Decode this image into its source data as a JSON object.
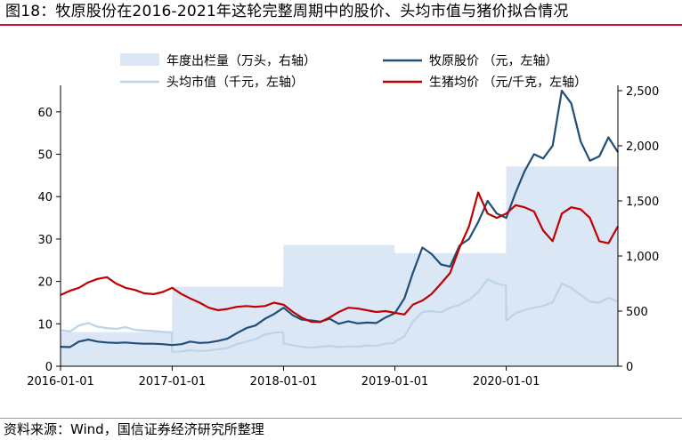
{
  "title": "图18：牧原股份在2016-2021年这轮完整周期中的股价、头均市值与猪价拟合情况",
  "source": "资料来源：Wind，国信证券经济研究所整理",
  "chart_data": {
    "type": "line",
    "x_range": [
      "2016-01-01",
      "2021-01-01"
    ],
    "x_ticks": [
      "2016-01-01",
      "2017-01-01",
      "2018-01-01",
      "2019-01-01",
      "2020-01-01"
    ],
    "x_tick_labels": [
      "2016-01-01",
      "2017-01-01",
      "2018-01-01",
      "2019-01-01",
      "2020-01-01"
    ],
    "y_left": {
      "range": [
        0,
        65
      ],
      "ticks": [
        0,
        10,
        20,
        30,
        40,
        50,
        60
      ],
      "tick_labels": [
        "0",
        "10",
        "20",
        "30",
        "40",
        "50",
        "60"
      ]
    },
    "y_right": {
      "range": [
        0,
        2500
      ],
      "ticks": [
        0,
        500,
        1000,
        1500,
        2000,
        2500
      ],
      "tick_labels": [
        "0",
        "500",
        "1,000",
        "1,500",
        "2,000",
        "2,500"
      ]
    },
    "legend_position": "top",
    "grid": false,
    "series": [
      {
        "name": "年度出栏量（万头，右轴）",
        "axis": "right",
        "kind": "area",
        "color": "#dbe7f5",
        "points": [
          [
            "2016-01-01",
            310
          ],
          [
            "2016-12-31",
            310
          ],
          [
            "2017-01-01",
            722
          ],
          [
            "2017-12-31",
            722
          ],
          [
            "2018-01-01",
            1101
          ],
          [
            "2018-12-31",
            1101
          ],
          [
            "2019-01-01",
            1025
          ],
          [
            "2019-12-31",
            1025
          ],
          [
            "2020-01-01",
            1812
          ],
          [
            "2021-01-01",
            1812
          ]
        ]
      },
      {
        "name": "头均市值（千元，左轴）",
        "axis": "left",
        "kind": "line",
        "color": "#bcd3e8",
        "points": [
          [
            "2016-01-01",
            8.5
          ],
          [
            "2016-02-01",
            8.2
          ],
          [
            "2016-03-01",
            9.6
          ],
          [
            "2016-04-01",
            10.2
          ],
          [
            "2016-05-01",
            9.3
          ],
          [
            "2016-06-01",
            9.0
          ],
          [
            "2016-07-01",
            8.8
          ],
          [
            "2016-08-01",
            9.2
          ],
          [
            "2016-09-01",
            8.6
          ],
          [
            "2016-10-01",
            8.4
          ],
          [
            "2016-11-01",
            8.3
          ],
          [
            "2016-12-01",
            8.1
          ],
          [
            "2016-12-31",
            8.0
          ],
          [
            "2017-01-01",
            3.4
          ],
          [
            "2017-02-01",
            3.5
          ],
          [
            "2017-03-01",
            3.8
          ],
          [
            "2017-04-01",
            3.6
          ],
          [
            "2017-05-01",
            3.7
          ],
          [
            "2017-06-01",
            4.0
          ],
          [
            "2017-07-01",
            4.3
          ],
          [
            "2017-08-01",
            5.2
          ],
          [
            "2017-09-01",
            5.8
          ],
          [
            "2017-10-01",
            6.4
          ],
          [
            "2017-11-01",
            7.5
          ],
          [
            "2017-12-01",
            7.9
          ],
          [
            "2017-12-31",
            8.0
          ],
          [
            "2018-01-01",
            5.4
          ],
          [
            "2018-02-01",
            4.9
          ],
          [
            "2018-03-01",
            4.6
          ],
          [
            "2018-04-01",
            4.4
          ],
          [
            "2018-05-01",
            4.6
          ],
          [
            "2018-06-01",
            4.8
          ],
          [
            "2018-07-01",
            4.5
          ],
          [
            "2018-08-01",
            4.7
          ],
          [
            "2018-09-01",
            4.6
          ],
          [
            "2018-10-01",
            4.9
          ],
          [
            "2018-11-01",
            4.8
          ],
          [
            "2018-12-01",
            5.3
          ],
          [
            "2018-12-31",
            5.5
          ],
          [
            "2019-01-01",
            5.8
          ],
          [
            "2019-02-01",
            7.0
          ],
          [
            "2019-03-01",
            10.5
          ],
          [
            "2019-04-01",
            12.8
          ],
          [
            "2019-05-01",
            13.0
          ],
          [
            "2019-06-01",
            12.7
          ],
          [
            "2019-07-01",
            13.8
          ],
          [
            "2019-08-01",
            14.5
          ],
          [
            "2019-09-01",
            15.7
          ],
          [
            "2019-10-01",
            17.5
          ],
          [
            "2019-11-01",
            20.5
          ],
          [
            "2019-12-01",
            19.5
          ],
          [
            "2019-12-31",
            19.0
          ],
          [
            "2020-01-01",
            10.8
          ],
          [
            "2020-02-01",
            12.5
          ],
          [
            "2020-03-01",
            13.3
          ],
          [
            "2020-04-01",
            13.8
          ],
          [
            "2020-05-01",
            14.2
          ],
          [
            "2020-06-01",
            15.1
          ],
          [
            "2020-07-01",
            19.5
          ],
          [
            "2020-08-01",
            18.5
          ],
          [
            "2020-09-01",
            16.8
          ],
          [
            "2020-10-01",
            15.2
          ],
          [
            "2020-11-01",
            15.0
          ],
          [
            "2020-12-01",
            16.2
          ],
          [
            "2021-01-01",
            15.2
          ]
        ]
      },
      {
        "name": "牧原股价 （元，左轴）",
        "axis": "left",
        "kind": "line",
        "color": "#1f4e79",
        "points": [
          [
            "2016-01-01",
            4.6
          ],
          [
            "2016-02-01",
            4.5
          ],
          [
            "2016-03-01",
            5.8
          ],
          [
            "2016-04-01",
            6.3
          ],
          [
            "2016-05-01",
            5.8
          ],
          [
            "2016-06-01",
            5.6
          ],
          [
            "2016-07-01",
            5.5
          ],
          [
            "2016-08-01",
            5.6
          ],
          [
            "2016-09-01",
            5.4
          ],
          [
            "2016-10-01",
            5.3
          ],
          [
            "2016-11-01",
            5.3
          ],
          [
            "2016-12-01",
            5.2
          ],
          [
            "2017-01-01",
            5.0
          ],
          [
            "2017-02-01",
            5.2
          ],
          [
            "2017-03-01",
            5.8
          ],
          [
            "2017-04-01",
            5.5
          ],
          [
            "2017-05-01",
            5.6
          ],
          [
            "2017-06-01",
            6.0
          ],
          [
            "2017-07-01",
            6.5
          ],
          [
            "2017-08-01",
            7.8
          ],
          [
            "2017-09-01",
            9.0
          ],
          [
            "2017-10-01",
            9.6
          ],
          [
            "2017-11-01",
            11.2
          ],
          [
            "2017-12-01",
            12.3
          ],
          [
            "2018-01-01",
            13.8
          ],
          [
            "2018-02-01",
            12.0
          ],
          [
            "2018-03-01",
            11.0
          ],
          [
            "2018-04-01",
            10.8
          ],
          [
            "2018-05-01",
            10.5
          ],
          [
            "2018-06-01",
            11.2
          ],
          [
            "2018-07-01",
            10.0
          ],
          [
            "2018-08-01",
            10.6
          ],
          [
            "2018-09-01",
            10.1
          ],
          [
            "2018-10-01",
            10.3
          ],
          [
            "2018-11-01",
            10.2
          ],
          [
            "2018-12-01",
            11.5
          ],
          [
            "2019-01-01",
            12.5
          ],
          [
            "2019-02-01",
            16.0
          ],
          [
            "2019-03-01",
            22.0
          ],
          [
            "2019-04-01",
            28.0
          ],
          [
            "2019-05-01",
            26.5
          ],
          [
            "2019-06-01",
            24.0
          ],
          [
            "2019-07-01",
            23.5
          ],
          [
            "2019-08-01",
            28.5
          ],
          [
            "2019-09-01",
            30.0
          ],
          [
            "2019-10-01",
            34.0
          ],
          [
            "2019-11-01",
            39.0
          ],
          [
            "2019-12-01",
            36.0
          ],
          [
            "2020-01-01",
            35.0
          ],
          [
            "2020-02-01",
            41.0
          ],
          [
            "2020-03-01",
            46.0
          ],
          [
            "2020-04-01",
            50.0
          ],
          [
            "2020-05-01",
            49.0
          ],
          [
            "2020-06-01",
            52.0
          ],
          [
            "2020-07-01",
            65.0
          ],
          [
            "2020-08-01",
            62.0
          ],
          [
            "2020-09-01",
            53.0
          ],
          [
            "2020-10-01",
            48.5
          ],
          [
            "2020-11-01",
            49.5
          ],
          [
            "2020-12-01",
            54.0
          ],
          [
            "2021-01-01",
            50.5
          ]
        ]
      },
      {
        "name": "生猪均价 （元/千克，左轴）",
        "axis": "left",
        "kind": "line",
        "color": "#c00000",
        "points": [
          [
            "2016-01-01",
            16.8
          ],
          [
            "2016-02-01",
            17.8
          ],
          [
            "2016-03-01",
            18.5
          ],
          [
            "2016-04-01",
            19.8
          ],
          [
            "2016-05-01",
            20.6
          ],
          [
            "2016-06-01",
            21.0
          ],
          [
            "2016-07-01",
            19.5
          ],
          [
            "2016-08-01",
            18.5
          ],
          [
            "2016-09-01",
            18.0
          ],
          [
            "2016-10-01",
            17.2
          ],
          [
            "2016-11-01",
            17.0
          ],
          [
            "2016-12-01",
            17.5
          ],
          [
            "2017-01-01",
            18.5
          ],
          [
            "2017-02-01",
            17.0
          ],
          [
            "2017-03-01",
            16.0
          ],
          [
            "2017-04-01",
            15.0
          ],
          [
            "2017-05-01",
            13.8
          ],
          [
            "2017-06-01",
            13.2
          ],
          [
            "2017-07-01",
            13.5
          ],
          [
            "2017-08-01",
            14.0
          ],
          [
            "2017-09-01",
            14.2
          ],
          [
            "2017-10-01",
            14.0
          ],
          [
            "2017-11-01",
            14.2
          ],
          [
            "2017-12-01",
            15.0
          ],
          [
            "2018-01-01",
            14.5
          ],
          [
            "2018-02-01",
            12.8
          ],
          [
            "2018-03-01",
            11.5
          ],
          [
            "2018-04-01",
            10.5
          ],
          [
            "2018-05-01",
            10.4
          ],
          [
            "2018-06-01",
            11.5
          ],
          [
            "2018-07-01",
            12.8
          ],
          [
            "2018-08-01",
            13.8
          ],
          [
            "2018-09-01",
            13.6
          ],
          [
            "2018-10-01",
            13.2
          ],
          [
            "2018-11-01",
            12.8
          ],
          [
            "2018-12-01",
            13.0
          ],
          [
            "2019-01-01",
            12.6
          ],
          [
            "2019-02-01",
            12.2
          ],
          [
            "2019-03-01",
            14.5
          ],
          [
            "2019-04-01",
            15.5
          ],
          [
            "2019-05-01",
            17.0
          ],
          [
            "2019-06-01",
            19.5
          ],
          [
            "2019-07-01",
            22.0
          ],
          [
            "2019-08-01",
            28.0
          ],
          [
            "2019-09-01",
            33.0
          ],
          [
            "2019-10-01",
            41.0
          ],
          [
            "2019-11-01",
            36.0
          ],
          [
            "2019-12-01",
            35.0
          ],
          [
            "2020-01-01",
            36.0
          ],
          [
            "2020-02-01",
            38.0
          ],
          [
            "2020-03-01",
            37.5
          ],
          [
            "2020-04-01",
            36.5
          ],
          [
            "2020-05-01",
            32.0
          ],
          [
            "2020-06-01",
            29.5
          ],
          [
            "2020-07-01",
            36.0
          ],
          [
            "2020-08-01",
            37.5
          ],
          [
            "2020-09-01",
            37.0
          ],
          [
            "2020-10-01",
            35.0
          ],
          [
            "2020-11-01",
            29.5
          ],
          [
            "2020-12-01",
            29.0
          ],
          [
            "2021-01-01",
            33.0
          ]
        ]
      }
    ]
  }
}
